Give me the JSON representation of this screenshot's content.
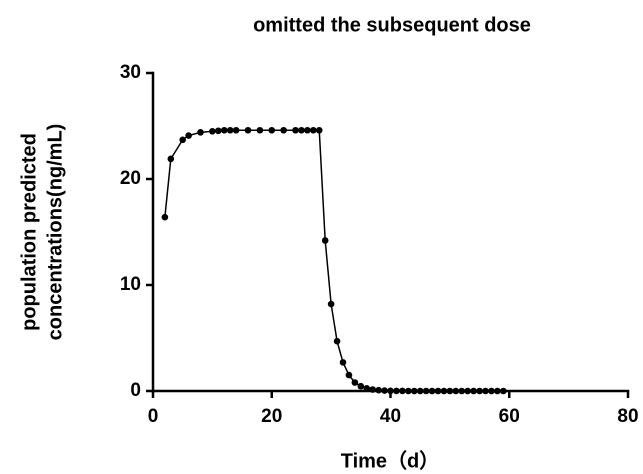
{
  "chart_data": {
    "type": "line",
    "title": "omitted the subsequent dose",
    "xlabel": "Time（d）",
    "ylabel": [
      "population predicted",
      "concentrations(ng/mL)"
    ],
    "x": [
      2,
      3,
      5,
      6,
      8,
      10,
      11,
      12,
      13,
      14,
      16,
      18,
      20,
      22,
      24,
      25,
      26,
      27,
      28,
      29,
      30,
      31,
      32,
      33,
      34,
      35,
      36,
      37,
      38,
      39,
      40,
      41,
      42,
      43,
      44,
      45,
      46,
      47,
      48,
      49,
      50,
      51,
      52,
      53,
      54,
      55,
      56,
      57,
      58,
      59
    ],
    "series": [
      {
        "color": "#000000",
        "values": [
          16.4,
          21.9,
          23.7,
          24.1,
          24.4,
          24.5,
          24.55,
          24.6,
          24.6,
          24.6,
          24.6,
          24.6,
          24.6,
          24.6,
          24.6,
          24.6,
          24.6,
          24.6,
          24.6,
          14.2,
          8.2,
          4.7,
          2.7,
          1.5,
          0.8,
          0.45,
          0.25,
          0.14,
          0.08,
          0.04,
          0.02,
          0.01,
          0.01,
          0,
          0,
          0,
          0,
          0,
          0,
          0,
          0,
          0,
          0,
          0,
          0,
          0,
          0,
          0,
          0,
          0
        ]
      }
    ],
    "xlim": [
      0,
      80
    ],
    "xticks": [
      0,
      20,
      40,
      60,
      80
    ],
    "ylim": [
      0,
      30
    ],
    "yticks": [
      0,
      10,
      20,
      30
    ]
  }
}
